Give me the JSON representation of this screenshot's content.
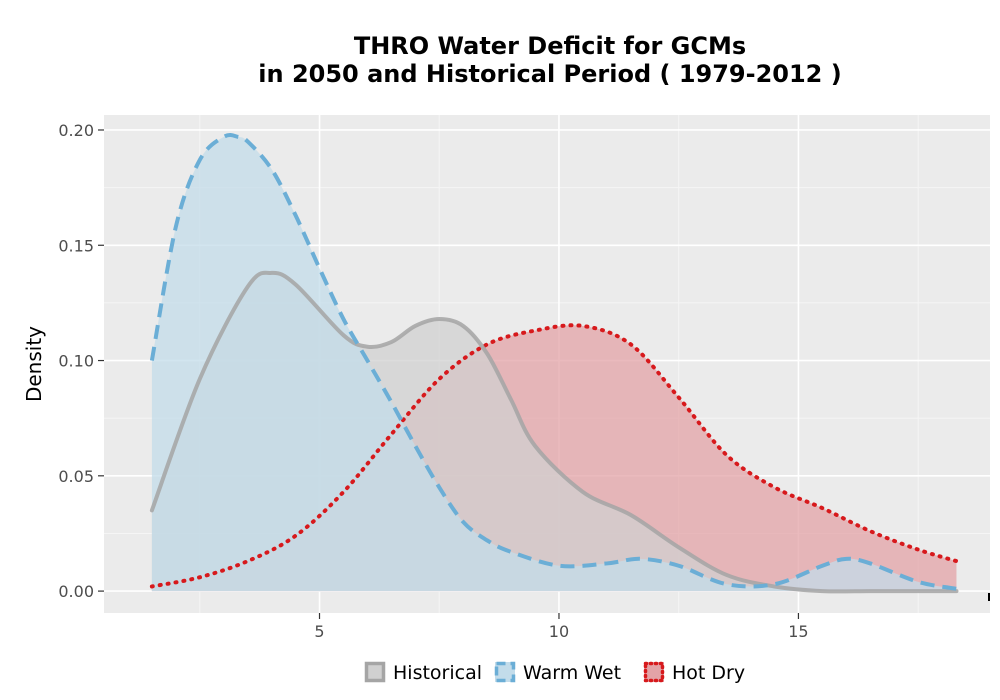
{
  "title_line1": "THRO  Water Deficit for GCMs",
  "title_line2": "in 2050 and Historical Period ( 1979-2012 )",
  "chart_data": {
    "type": "area",
    "ylabel": "Density",
    "xlabel": "",
    "xlim": [
      0.5,
      19.0
    ],
    "ylim": [
      -0.0095,
      0.2065
    ],
    "x_ticks": [
      5,
      10,
      15
    ],
    "y_ticks": [
      0.0,
      0.05,
      0.1,
      0.15,
      0.2
    ],
    "y_tick_labels": [
      "0.00",
      "0.05",
      "0.10",
      "0.15",
      "0.20"
    ],
    "grid": true,
    "legend_position": "bottom",
    "series": [
      {
        "name": "Hot Dry",
        "color": "#D7191C",
        "fill": "#E3A3A7",
        "line_style": "dotted",
        "x": [
          1.5,
          2.5,
          3.5,
          4.5,
          5.5,
          6.5,
          7.5,
          8.5,
          9.5,
          10.5,
          11.5,
          12.5,
          13.5,
          14.5,
          15.5,
          16.5,
          17.5,
          18.3
        ],
        "y": [
          0.002,
          0.006,
          0.013,
          0.024,
          0.043,
          0.068,
          0.092,
          0.107,
          0.113,
          0.115,
          0.107,
          0.084,
          0.059,
          0.045,
          0.036,
          0.026,
          0.018,
          0.013
        ]
      },
      {
        "name": "Historical",
        "color": "#A5A5A5",
        "fill": "#D0D0D0",
        "line_style": "solid",
        "x": [
          1.5,
          2.5,
          3.5,
          4.0,
          4.5,
          5.5,
          6.0,
          6.5,
          7.0,
          7.5,
          8.0,
          8.5,
          9.0,
          9.5,
          10.5,
          11.5,
          12.5,
          13.5,
          14.5,
          15.5,
          16.5,
          17.5,
          18.3
        ],
        "y": [
          0.035,
          0.092,
          0.132,
          0.138,
          0.133,
          0.111,
          0.106,
          0.108,
          0.115,
          0.118,
          0.115,
          0.103,
          0.083,
          0.063,
          0.043,
          0.033,
          0.019,
          0.007,
          0.002,
          0.0,
          0.0,
          0.0,
          0.0
        ]
      },
      {
        "name": "Warm Wet",
        "color": "#6BAED6",
        "fill": "#C3DCEA",
        "line_style": "dashed",
        "x": [
          1.5,
          2.0,
          2.5,
          3.0,
          3.3,
          3.5,
          4.0,
          4.5,
          5.0,
          5.5,
          6.0,
          6.5,
          7.0,
          7.5,
          8.0,
          8.5,
          9.0,
          10.0,
          11.0,
          11.7,
          12.5,
          13.5,
          14.5,
          15.5,
          16.0,
          16.5,
          17.5,
          18.3
        ],
        "y": [
          0.1,
          0.158,
          0.187,
          0.197,
          0.197,
          0.195,
          0.183,
          0.163,
          0.14,
          0.118,
          0.1,
          0.082,
          0.063,
          0.045,
          0.03,
          0.022,
          0.017,
          0.011,
          0.012,
          0.014,
          0.011,
          0.003,
          0.003,
          0.011,
          0.014,
          0.012,
          0.004,
          0.001
        ]
      }
    ]
  },
  "legend": {
    "items": [
      {
        "label": "Historical",
        "color": "#A5A5A5",
        "fill": "#D0D0D0",
        "line_style": "solid"
      },
      {
        "label": "Warm Wet",
        "color": "#6BAED6",
        "fill": "#C3DCEA",
        "line_style": "dashed"
      },
      {
        "label": "Hot Dry",
        "color": "#D7191C",
        "fill": "#E3A3A7",
        "line_style": "dotted"
      }
    ]
  }
}
